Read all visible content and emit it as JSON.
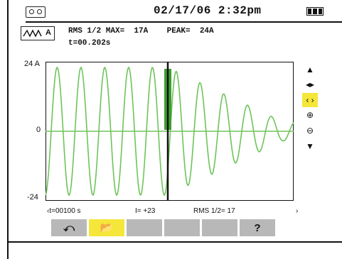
{
  "header": {
    "datetime": "02/17/06  2:32pm",
    "icons": {
      "recorder": "tape-icon",
      "battery": "battery-icon"
    }
  },
  "measurements": {
    "mode_label": "A",
    "line1": "RMS 1/2 MAX=  17A    PEAK=  24A",
    "line2": "t=00.202s"
  },
  "axis": {
    "y_top": "24 A",
    "y_zero": "0",
    "y_bottom": "-24"
  },
  "status": {
    "time": "‹t=00100 s",
    "index": "I=  +23",
    "rms": "RMS 1/2=  17",
    "arrow": "›"
  },
  "side_buttons": [
    {
      "name": "scroll-up-icon",
      "glyph": "▲",
      "active": false
    },
    {
      "name": "pan-left-right-icon",
      "glyph": "◂▸",
      "active": false
    },
    {
      "name": "cursor-move-icon",
      "glyph": "‹ ›",
      "active": true
    },
    {
      "name": "zoom-in-icon",
      "glyph": "⊕",
      "active": false
    },
    {
      "name": "zoom-out-icon",
      "glyph": "⊖",
      "active": false
    },
    {
      "name": "scroll-down-icon",
      "glyph": "▼",
      "active": false
    }
  ],
  "fkeys": [
    {
      "name": "return-button",
      "label": "⤺",
      "active": false
    },
    {
      "name": "open-folder-button",
      "label": "📂",
      "active": true
    },
    {
      "name": "fkey-3-button",
      "label": "",
      "active": false
    },
    {
      "name": "fkey-4-button",
      "label": "",
      "active": false
    },
    {
      "name": "fkey-5-button",
      "label": "",
      "active": false
    },
    {
      "name": "help-button",
      "label": "?",
      "active": false
    }
  ],
  "colors": {
    "wave": "#6ec45a",
    "highlight": "#f5e63a",
    "key": "#b8b8b8"
  }
}
